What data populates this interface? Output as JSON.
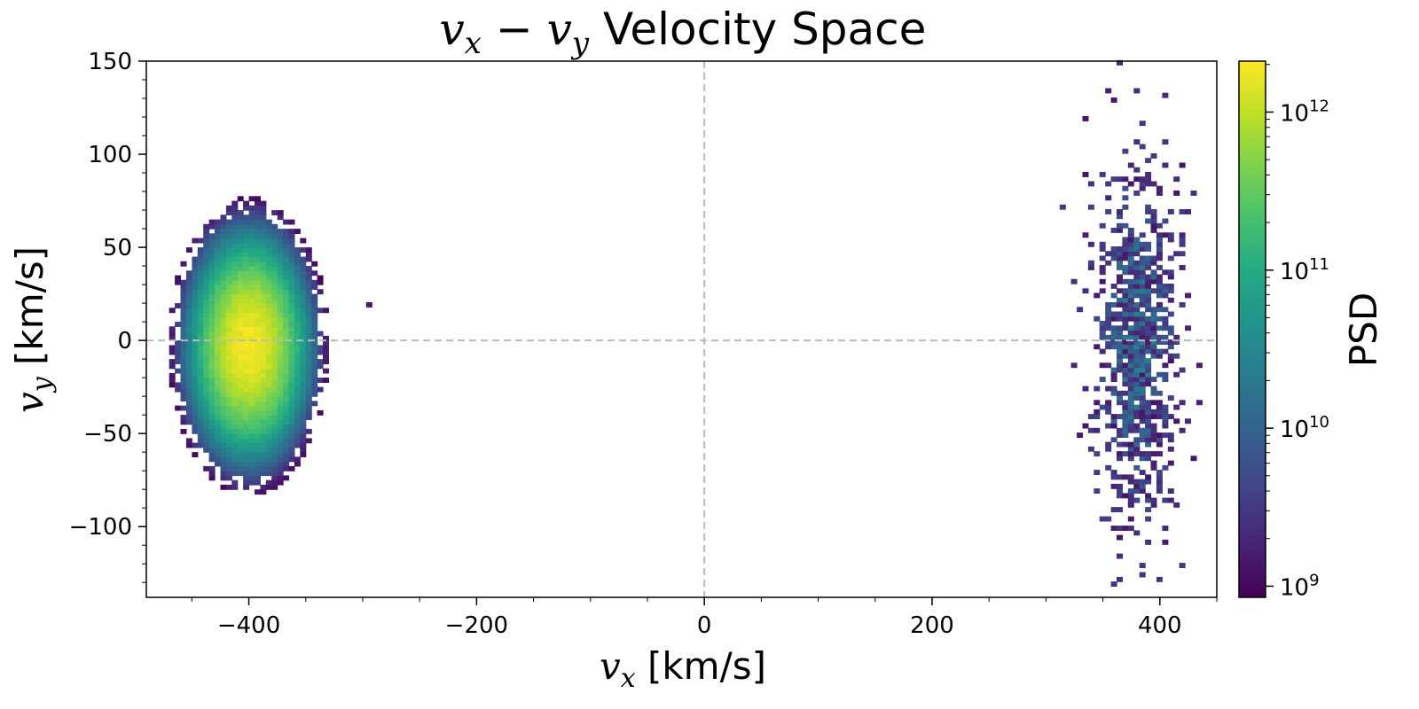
{
  "chart_data": {
    "type": "heatmap",
    "title_parts": {
      "a": "v",
      "a_sub": "x",
      "minus": " − ",
      "b": "v",
      "b_sub": "y",
      "rest": " Velocity Space"
    },
    "xlabel_parts": {
      "sym": "v",
      "sub": "x",
      "unit": " [km/s]"
    },
    "ylabel_parts": {
      "sym": "v",
      "sub": "y",
      "unit": " [km/s]"
    },
    "colorbar_label": "PSD",
    "colorbar_scale": "log",
    "colorbar_range": [
      850000000.0,
      2100000000000.0
    ],
    "colorbar_ticks": [
      {
        "base": "10",
        "exp": "9",
        "value": 1000000000.0
      },
      {
        "base": "10",
        "exp": "10",
        "value": 10000000000.0
      },
      {
        "base": "10",
        "exp": "11",
        "value": 100000000000.0
      },
      {
        "base": "10",
        "exp": "12",
        "value": 1000000000000.0
      }
    ],
    "colormap": "viridis",
    "xlim": [
      -490,
      450
    ],
    "ylim": [
      -138,
      150
    ],
    "xticks": [
      {
        "value": -400,
        "label": "−400"
      },
      {
        "value": -200,
        "label": "−200"
      },
      {
        "value": 0,
        "label": "0"
      },
      {
        "value": 200,
        "label": "200"
      },
      {
        "value": 400,
        "label": "400"
      }
    ],
    "yticks": [
      {
        "value": -100,
        "label": "−100"
      },
      {
        "value": -50,
        "label": "−50"
      },
      {
        "value": 0,
        "label": "0"
      },
      {
        "value": 50,
        "label": "50"
      },
      {
        "value": 100,
        "label": "100"
      },
      {
        "value": 150,
        "label": "150"
      }
    ],
    "reference_lines": {
      "x": 0,
      "y": 0,
      "style": "dashed",
      "color": "#bbbbbb"
    },
    "grid": false,
    "bin_size": {
      "vx": 5,
      "vy": 2.5
    },
    "populations": [
      {
        "center_vx": -400,
        "center_vy": -3,
        "sigma_vx": 28,
        "sigma_vy": 32,
        "peak_psd": 1900000000000.0,
        "extent_vx": [
          -470,
          -315
        ],
        "extent_vy": [
          -90,
          88
        ],
        "outlier": {
          "vx": -297,
          "vy": 18
        }
      },
      {
        "center_vx": 380,
        "center_vy": 0,
        "sigma_vx": 20,
        "sigma_vy": 55,
        "peak_psd": 25000000000.0,
        "extent_vx": [
          312,
          445
        ],
        "extent_vy": [
          -137,
          150
        ]
      }
    ]
  }
}
